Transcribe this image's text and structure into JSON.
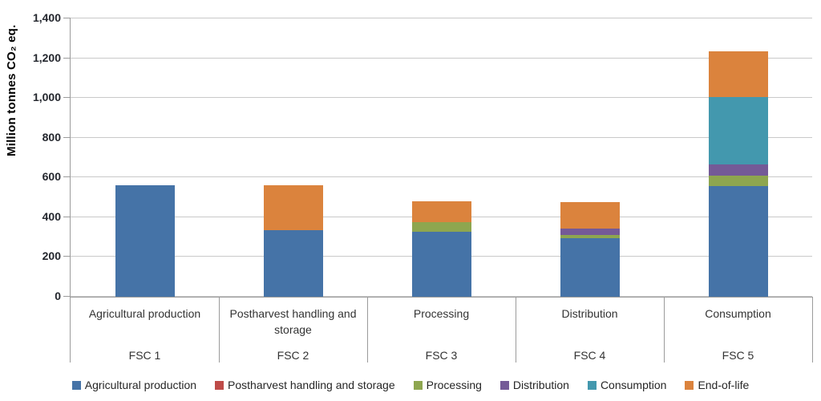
{
  "chart_data": {
    "type": "bar",
    "stacked": true,
    "title": "",
    "xlabel": "",
    "ylabel": "Million tonnes CO₂ eq.",
    "ylim": [
      0,
      1400
    ],
    "grid": true,
    "legend_position": "bottom",
    "yticks": [
      {
        "value": 0,
        "label": "0"
      },
      {
        "value": 200,
        "label": "200"
      },
      {
        "value": 400,
        "label": "400"
      },
      {
        "value": 600,
        "label": "600"
      },
      {
        "value": 800,
        "label": "800"
      },
      {
        "value": 1000,
        "label": "1,000"
      },
      {
        "value": 1200,
        "label": "1,200"
      },
      {
        "value": 1400,
        "label": "1,400"
      }
    ],
    "categories": [
      {
        "stage": "Agricultural production",
        "fsc": "FSC 1"
      },
      {
        "stage": "Postharvest handling and storage",
        "fsc": "FSC 2"
      },
      {
        "stage": "Processing",
        "fsc": "FSC 3"
      },
      {
        "stage": "Distribution",
        "fsc": "FSC 4"
      },
      {
        "stage": "Consumption",
        "fsc": "FSC 5"
      }
    ],
    "series": [
      {
        "name": "Agricultural production",
        "color": "#4573A7",
        "values": [
          560,
          335,
          325,
          295,
          555
        ]
      },
      {
        "name": "Postharvest handling and storage",
        "color": "#BE4B48",
        "values": [
          0,
          0,
          0,
          0,
          0
        ]
      },
      {
        "name": "Processing",
        "color": "#8EA64F",
        "values": [
          0,
          0,
          50,
          15,
          55
        ]
      },
      {
        "name": "Distribution",
        "color": "#745A97",
        "values": [
          0,
          0,
          0,
          35,
          55
        ]
      },
      {
        "name": "Consumption",
        "color": "#4398AE",
        "values": [
          0,
          0,
          0,
          0,
          340
        ]
      },
      {
        "name": "End-of-life",
        "color": "#DB833D",
        "values": [
          0,
          225,
          105,
          130,
          230
        ]
      }
    ]
  }
}
